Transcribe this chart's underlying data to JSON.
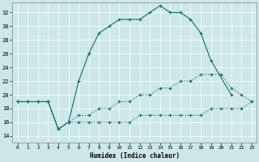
{
  "xlabel": "Humidex (Indice chaleur)",
  "xlim": [
    -0.5,
    23.5
  ],
  "ylim": [
    13,
    33.5
  ],
  "yticks": [
    14,
    16,
    18,
    20,
    22,
    24,
    26,
    28,
    30,
    32
  ],
  "xticks": [
    0,
    1,
    2,
    3,
    4,
    5,
    6,
    7,
    8,
    9,
    10,
    11,
    12,
    13,
    14,
    15,
    16,
    17,
    18,
    19,
    20,
    21,
    22,
    23
  ],
  "bg_color": "#cde8e8",
  "line_color": "#1a6b6b",
  "line1_x": [
    0,
    1,
    2,
    3,
    4,
    5,
    6,
    7,
    8,
    9,
    10,
    11,
    12,
    13,
    14,
    15,
    16,
    17,
    18,
    19,
    20,
    21,
    22,
    23
  ],
  "line1_y": [
    19,
    19,
    19,
    19,
    15,
    16,
    22,
    26,
    29,
    30,
    31,
    31,
    31,
    32,
    33,
    32,
    32,
    31,
    29,
    25,
    null,
    20,
    null,
    null
  ],
  "line2_x": [
    0,
    1,
    2,
    3,
    4,
    5,
    6,
    7,
    8,
    9,
    10,
    11,
    12,
    13,
    14,
    15,
    16,
    17,
    18,
    19,
    20,
    21,
    22,
    23
  ],
  "line2_y": [
    19,
    19,
    19,
    19,
    15,
    16,
    17,
    17,
    18,
    18,
    19,
    19,
    20,
    20,
    21,
    21,
    22,
    22,
    23,
    23,
    23,
    21,
    20,
    19
  ],
  "line3_x": [
    0,
    1,
    2,
    3,
    4,
    5,
    6,
    7,
    8,
    9,
    10,
    11,
    12,
    13,
    14,
    15,
    16,
    17,
    18,
    19,
    20,
    21,
    22,
    23
  ],
  "line3_y": [
    19,
    19,
    19,
    19,
    15,
    16,
    16,
    16,
    16,
    16,
    16,
    16,
    17,
    17,
    17,
    17,
    17,
    17,
    17,
    18,
    18,
    18,
    18,
    19
  ]
}
